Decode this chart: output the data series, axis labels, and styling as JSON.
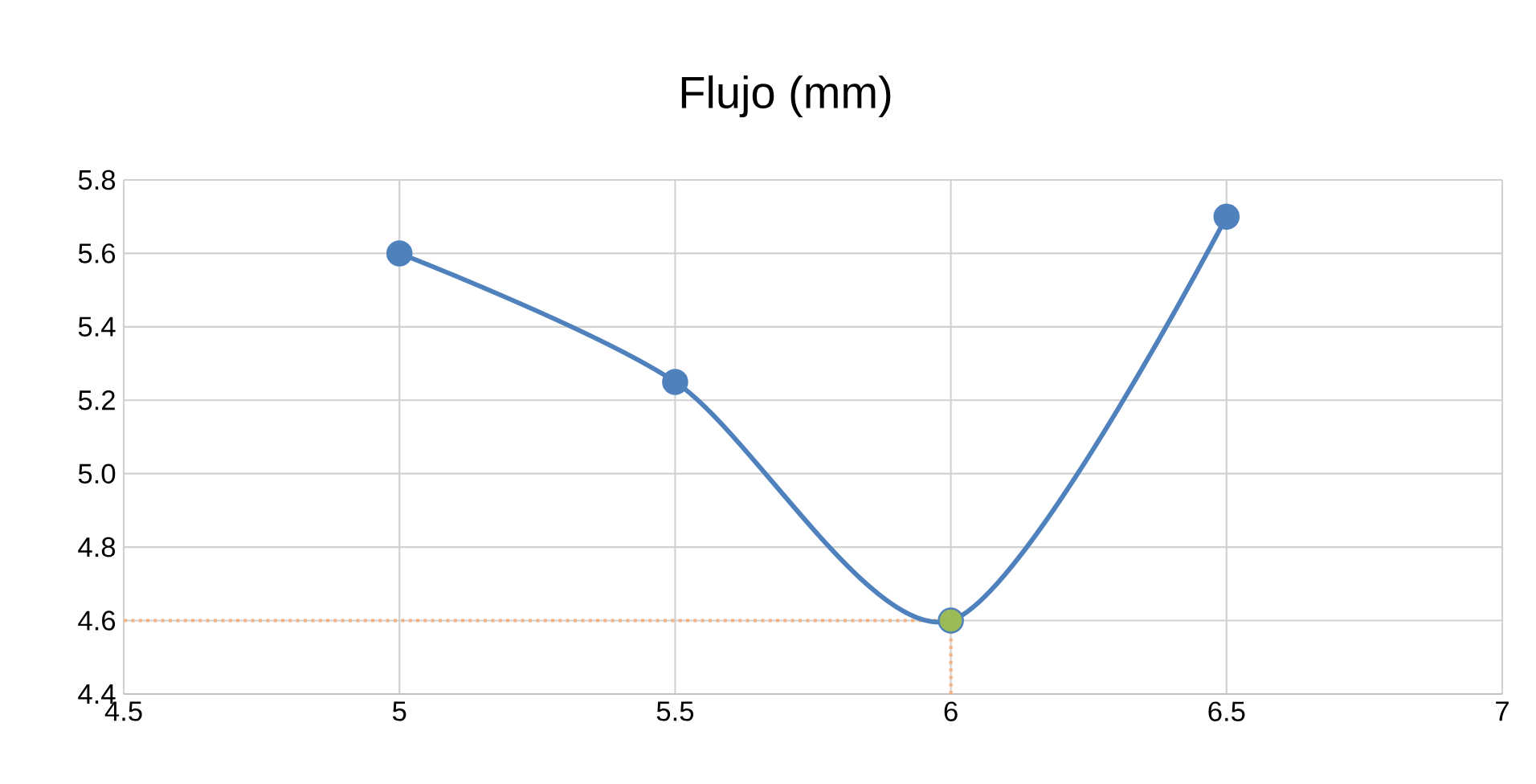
{
  "chart_data": {
    "type": "line",
    "title": "Flujo (mm)",
    "x": [
      5,
      5.5,
      6,
      6.5
    ],
    "series": [
      {
        "color": "#4f81bd",
        "values": [
          5.6,
          5.25,
          4.6,
          5.7
        ],
        "marker": "circle"
      },
      {
        "type": "scatter",
        "color": "#9bbb59",
        "x": [
          6
        ],
        "values": [
          4.6
        ],
        "marker": "circle"
      }
    ],
    "xlim": [
      4.5,
      7
    ],
    "xticks": [
      4.5,
      5,
      5.5,
      6,
      6.5,
      7
    ],
    "ylim": [
      4.4,
      5.8
    ],
    "yticks": [
      {
        "value": 4.4,
        "label": "4.4"
      },
      {
        "value": 4.6,
        "label": "4.6"
      },
      {
        "value": 4.8,
        "label": "4.8"
      },
      {
        "value": 5.0,
        "label": "5.0"
      },
      {
        "value": 5.2,
        "label": "5.2"
      },
      {
        "value": 5.4,
        "label": "5.4"
      },
      {
        "value": 5.6,
        "label": "5.6"
      },
      {
        "value": 5.8,
        "label": "5.8"
      }
    ],
    "grid": true,
    "ref_lines": [
      {
        "axis": "y",
        "value": 4.6,
        "color": "#f4b183",
        "line_style": "dotted"
      },
      {
        "axis": "x",
        "value": 6,
        "color": "#f4b183",
        "line_style": "dotted"
      }
    ]
  }
}
